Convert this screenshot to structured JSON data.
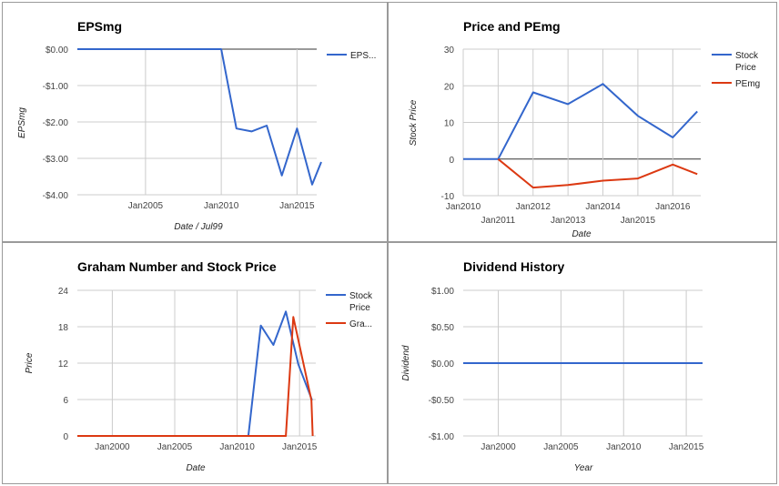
{
  "chart_data": [
    {
      "id": "eps",
      "type": "line",
      "title": "EPSmg",
      "xlabel": "Date / Jul99",
      "ylabel": "EPSmg",
      "ylim": [
        -4,
        0
      ],
      "xlim": [
        2000.5,
        2016.3
      ],
      "y_ticks": [
        0,
        -1,
        -2,
        -3,
        -4
      ],
      "y_tick_labels": [
        "$0.00",
        "-$1.00",
        "-$2.00",
        "-$3.00",
        "-$4.00"
      ],
      "x_ticks": [
        {
          "label": "Jan2005",
          "value": 2005,
          "row": 0
        },
        {
          "label": "Jan2010",
          "value": 2010,
          "row": 0
        },
        {
          "label": "Jan2015",
          "value": 2015,
          "row": 0
        }
      ],
      "grid": true,
      "legend": "right",
      "series": [
        {
          "name": "EPS...",
          "color": "#3366cc",
          "x": [
            2000.5,
            2010.0,
            2011.0,
            2012.0,
            2013.0,
            2014.0,
            2015.0,
            2016.0,
            2016.6
          ],
          "y": [
            0.0,
            0.0,
            -2.18,
            -2.26,
            -2.1,
            -3.47,
            -2.18,
            -3.72,
            -3.1
          ]
        }
      ]
    },
    {
      "id": "pe",
      "type": "line",
      "title": "Price and PEmg",
      "xlabel": "Date",
      "ylabel": "Stock Price",
      "ylim": [
        -10,
        30
      ],
      "xlim": [
        2010,
        2016.8
      ],
      "y_ticks": [
        30,
        20,
        10,
        0,
        -10
      ],
      "y_tick_labels": [
        "30",
        "20",
        "10",
        "0",
        "-10"
      ],
      "x_ticks": [
        {
          "label": "Jan2010",
          "value": 2010,
          "row": 0
        },
        {
          "label": "Jan2011",
          "value": 2011,
          "row": 1
        },
        {
          "label": "Jan2012",
          "value": 2012,
          "row": 0
        },
        {
          "label": "Jan2013",
          "value": 2013,
          "row": 1
        },
        {
          "label": "Jan2014",
          "value": 2014,
          "row": 0
        },
        {
          "label": "Jan2015",
          "value": 2015,
          "row": 1
        },
        {
          "label": "Jan2016",
          "value": 2016,
          "row": 0
        }
      ],
      "grid": true,
      "zero_line": true,
      "legend": "right",
      "series": [
        {
          "name": "Stock Price",
          "color": "#3366cc",
          "x": [
            2010.0,
            2011.0,
            2012.0,
            2013.0,
            2014.0,
            2015.0,
            2016.0,
            2016.7
          ],
          "y": [
            0,
            0,
            18.2,
            15.0,
            20.5,
            11.8,
            5.9,
            13.0
          ]
        },
        {
          "name": "PEmg",
          "color": "#dc3912",
          "x": [
            2011.0,
            2012.0,
            2013.0,
            2014.0,
            2015.0,
            2016.0,
            2016.7
          ],
          "y": [
            0,
            -7.8,
            -7.1,
            -5.9,
            -5.3,
            -1.5,
            -4.1
          ]
        }
      ]
    },
    {
      "id": "graham",
      "type": "line",
      "title": "Graham Number and Stock Price",
      "xlabel": "Date",
      "ylabel": "Price",
      "ylim": [
        0,
        24
      ],
      "xlim": [
        1997.2,
        2016.3
      ],
      "y_ticks": [
        24,
        18,
        12,
        6,
        0
      ],
      "y_tick_labels": [
        "24",
        "18",
        "12",
        "6",
        "0"
      ],
      "x_ticks": [
        {
          "label": "Jan2000",
          "value": 2000,
          "row": 0
        },
        {
          "label": "Jan2005",
          "value": 2005,
          "row": 0
        },
        {
          "label": "Jan2010",
          "value": 2010,
          "row": 0
        },
        {
          "label": "Jan2015",
          "value": 2015,
          "row": 0
        }
      ],
      "grid": true,
      "legend": "right",
      "series": [
        {
          "name": "Stock Price",
          "color": "#3366cc",
          "x": [
            1997.2,
            2010.9,
            2011.9,
            2012.9,
            2013.9,
            2014.9,
            2016.0
          ],
          "y": [
            0,
            0,
            18.2,
            15.0,
            20.5,
            11.8,
            5.9
          ]
        },
        {
          "name": "Gra...",
          "color": "#dc3912",
          "x": [
            1997.2,
            2013.9,
            2014.5,
            2015.95,
            2016.05
          ],
          "y": [
            0,
            0,
            19.6,
            5.9,
            0
          ]
        }
      ]
    },
    {
      "id": "dividend",
      "type": "line",
      "title": "Dividend History",
      "xlabel": "Year",
      "ylabel": "Dividend",
      "ylim": [
        -1,
        1
      ],
      "xlim": [
        1997.2,
        2016.3
      ],
      "y_ticks": [
        1,
        0.5,
        0,
        -0.5,
        -1
      ],
      "y_tick_labels": [
        "$1.00",
        "$0.50",
        "$0.00",
        "-$0.50",
        "-$1.00"
      ],
      "x_ticks": [
        {
          "label": "Jan2000",
          "value": 2000,
          "row": 0
        },
        {
          "label": "Jan2005",
          "value": 2005,
          "row": 0
        },
        {
          "label": "Jan2010",
          "value": 2010,
          "row": 0
        },
        {
          "label": "Jan2015",
          "value": 2015,
          "row": 0
        }
      ],
      "grid": true,
      "legend": "none",
      "series": [
        {
          "color": "#3366cc",
          "x": [
            1997.2,
            2016.3
          ],
          "y": [
            0,
            0
          ]
        }
      ]
    }
  ]
}
